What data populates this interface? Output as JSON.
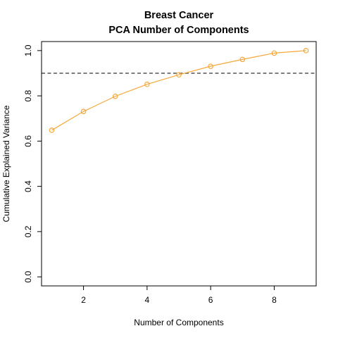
{
  "chart_data": {
    "type": "line",
    "title": "Breast Cancer",
    "subtitle": "PCA Number of Components",
    "xlabel": "Number of Components",
    "ylabel": "Cumulative Explained Variance",
    "x": [
      1,
      2,
      3,
      4,
      5,
      6,
      7,
      8,
      9
    ],
    "series": [
      {
        "values": [
          0.648,
          0.731,
          0.798,
          0.851,
          0.893,
          0.931,
          0.961,
          0.989,
          1.0
        ]
      }
    ],
    "xlim": [
      0.68,
      9.32
    ],
    "ylim": [
      -0.04,
      1.04
    ],
    "xticks": [
      2,
      4,
      6,
      8
    ],
    "xtick_labels": [
      "2",
      "4",
      "6",
      "8"
    ],
    "yticks": [
      0.0,
      0.2,
      0.4,
      0.6,
      0.8,
      1.0
    ],
    "ytick_labels": [
      "0.0",
      "0.2",
      "0.4",
      "0.6",
      "0.8",
      "1.0"
    ],
    "reference_line": {
      "y": 0.9,
      "style": "dashed",
      "color": "#808080"
    },
    "series_color": "#F5A83A",
    "marker": "open-circle",
    "grid": false,
    "legend": "none"
  }
}
